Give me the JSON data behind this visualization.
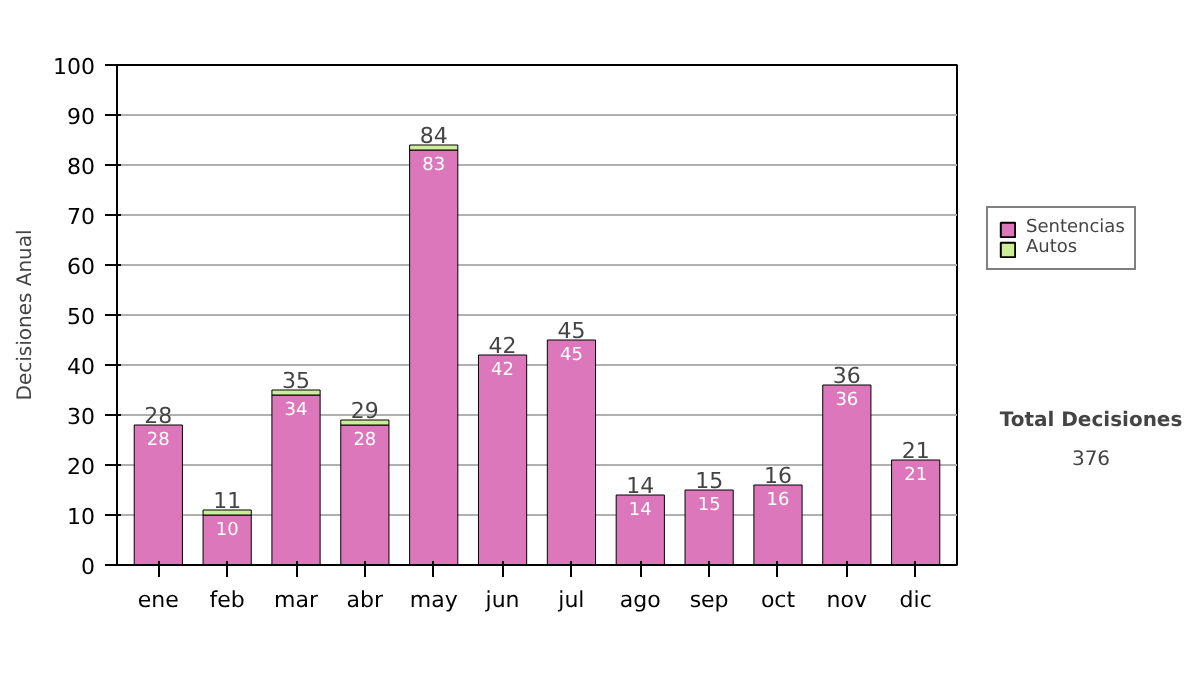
{
  "chart_data": {
    "type": "bar",
    "stacked": true,
    "ylabel": "Decisiones Anual",
    "categories": [
      "ene",
      "feb",
      "mar",
      "abr",
      "may",
      "jun",
      "jul",
      "ago",
      "sep",
      "oct",
      "nov",
      "dic"
    ],
    "series": [
      {
        "name": "Sentencias",
        "color": "#dd77bb",
        "values": [
          28,
          10,
          34,
          28,
          83,
          42,
          45,
          14,
          15,
          16,
          36,
          21
        ],
        "value_labels": [
          "28",
          "10",
          "34",
          "28",
          "83",
          "42",
          "45",
          "14",
          "15",
          "16",
          "36",
          "21"
        ]
      },
      {
        "name": "Autos",
        "color": "#ccee99",
        "values": [
          0,
          1,
          1,
          1,
          1,
          0,
          0,
          0,
          0,
          0,
          0,
          0
        ]
      }
    ],
    "totals": [
      "28",
      "11",
      "35",
      "29",
      "84",
      "42",
      "45",
      "14",
      "15",
      "16",
      "36",
      "21"
    ],
    "ylim": [
      0,
      100
    ],
    "yticks": [
      0,
      10,
      20,
      30,
      40,
      50,
      60,
      70,
      80,
      90,
      100
    ],
    "grid": "y",
    "legend": "right",
    "annotations": [
      "Total Decisiones",
      "376"
    ]
  }
}
